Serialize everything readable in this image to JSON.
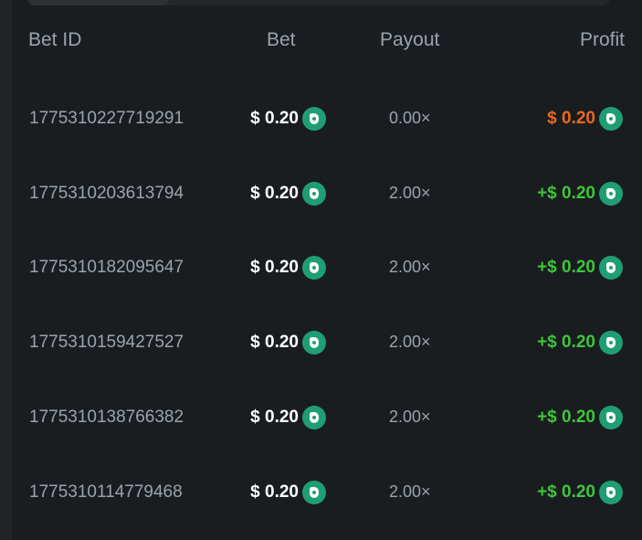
{
  "columns": {
    "bet_id": "Bet ID",
    "bet": "Bet",
    "payout": "Payout",
    "profit": "Profit"
  },
  "colors": {
    "loss": "#e8691e",
    "win": "#3fc43a",
    "coin": "#1f9e74"
  },
  "rows": [
    {
      "id": "1775310227719291",
      "bet": "$ 0.20",
      "payout": "0.00×",
      "profit": "$ 0.20",
      "status": "loss"
    },
    {
      "id": "1775310203613794",
      "bet": "$ 0.20",
      "payout": "2.00×",
      "profit": "+$ 0.20",
      "status": "win"
    },
    {
      "id": "1775310182095647",
      "bet": "$ 0.20",
      "payout": "2.00×",
      "profit": "+$ 0.20",
      "status": "win"
    },
    {
      "id": "1775310159427527",
      "bet": "$ 0.20",
      "payout": "2.00×",
      "profit": "+$ 0.20",
      "status": "win"
    },
    {
      "id": "1775310138766382",
      "bet": "$ 0.20",
      "payout": "2.00×",
      "profit": "+$ 0.20",
      "status": "win"
    },
    {
      "id": "1775310114779468",
      "bet": "$ 0.20",
      "payout": "2.00×",
      "profit": "+$ 0.20",
      "status": "win"
    }
  ]
}
